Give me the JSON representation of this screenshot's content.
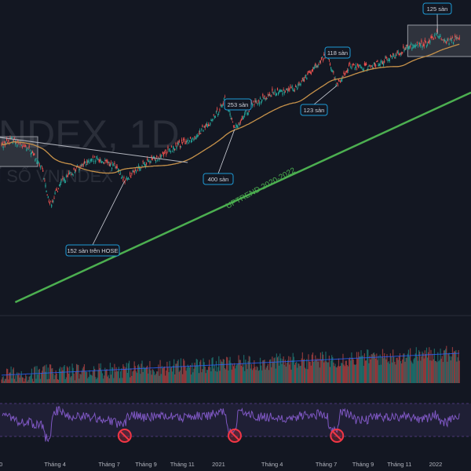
{
  "chart_data": {
    "type": "candlestick",
    "watermark": {
      "symbol": "NDEX, 1D",
      "subtitle": "Ỉ SỐ VNINDEX"
    },
    "x_ticks": [
      "0",
      "Tháng 4",
      "Tháng 7",
      "Tháng 9",
      "Tháng 11",
      "2021",
      "Tháng 4",
      "Tháng 7",
      "Tháng 9",
      "Tháng 11",
      "2022"
    ],
    "price_path": [
      {
        "date": "2020-01-02",
        "close": 960
      },
      {
        "date": "2020-01-20",
        "close": 991
      },
      {
        "date": "2020-02-20",
        "close": 930
      },
      {
        "date": "2020-03-10",
        "close": 840
      },
      {
        "date": "2020-03-20",
        "close": 700
      },
      {
        "date": "2020-03-24",
        "close": 660
      },
      {
        "date": "2020-04-10",
        "close": 770
      },
      {
        "date": "2020-05-15",
        "close": 860
      },
      {
        "date": "2020-06-10",
        "close": 890
      },
      {
        "date": "2020-07-10",
        "close": 855
      },
      {
        "date": "2020-07-27",
        "close": 780
      },
      {
        "date": "2020-08-20",
        "close": 850
      },
      {
        "date": "2020-09-20",
        "close": 900
      },
      {
        "date": "2020-10-20",
        "close": 950
      },
      {
        "date": "2020-11-20",
        "close": 1000
      },
      {
        "date": "2020-12-20",
        "close": 1080
      },
      {
        "date": "2021-01-12",
        "close": 1190
      },
      {
        "date": "2021-01-28",
        "close": 1040
      },
      {
        "date": "2021-02-10",
        "close": 1100
      },
      {
        "date": "2021-03-01",
        "close": 1170
      },
      {
        "date": "2021-04-01",
        "close": 1220
      },
      {
        "date": "2021-05-10",
        "close": 1250
      },
      {
        "date": "2021-06-10",
        "close": 1340
      },
      {
        "date": "2021-07-02",
        "close": 1420
      },
      {
        "date": "2021-07-19",
        "close": 1260
      },
      {
        "date": "2021-08-10",
        "close": 1360
      },
      {
        "date": "2021-09-10",
        "close": 1350
      },
      {
        "date": "2021-10-10",
        "close": 1390
      },
      {
        "date": "2021-11-20",
        "close": 1460
      },
      {
        "date": "2021-12-20",
        "close": 1470
      },
      {
        "date": "2022-01-04",
        "close": 1520
      },
      {
        "date": "2022-01-20",
        "close": 1480
      },
      {
        "date": "2022-02-10",
        "close": 1500
      }
    ],
    "annotations": [
      {
        "text": "152 sàn trên HOSE"
      },
      {
        "text": "400 sàn"
      },
      {
        "text": "253 sàn"
      },
      {
        "text": "123 sàn"
      },
      {
        "text": "118 sàn"
      },
      {
        "text": "125 sàn"
      },
      {
        "text": "UPTREND 2020-2022"
      }
    ],
    "rsi_warnings": 3,
    "colors": {
      "background": "#131722",
      "candle_up": "#26a69a",
      "candle_down": "#ef5350",
      "ma": "#c7924a",
      "trendline": "#4caf50",
      "downtrend_line": "#b2b5be",
      "rsi": "#7e57c2",
      "warning": "#f23645",
      "label_border": "#1e9bd7"
    }
  }
}
